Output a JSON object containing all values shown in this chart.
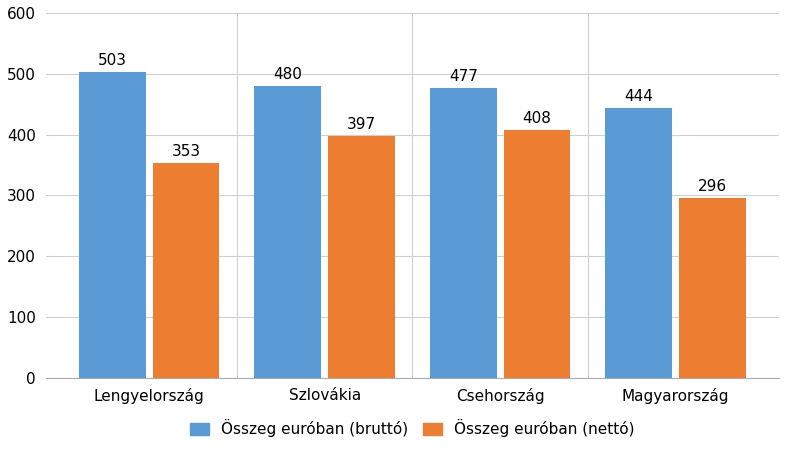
{
  "categories": [
    "Lengyelország",
    "Szlovákia",
    "Csehország",
    "Magyarország"
  ],
  "brutto": [
    503,
    480,
    477,
    444
  ],
  "netto": [
    353,
    397,
    408,
    296
  ],
  "color_brutto": "#5B9BD5",
  "color_netto": "#ED7D31",
  "ylim": [
    0,
    600
  ],
  "yticks": [
    0,
    100,
    200,
    300,
    400,
    500,
    600
  ],
  "legend_brutto": "Összeg euróban (bruttó)",
  "legend_netto": "Összeg euróban (nettó)",
  "bar_width": 0.38,
  "label_fontsize": 11,
  "tick_fontsize": 11,
  "legend_fontsize": 11,
  "background_color": "#ffffff",
  "grid_color": "#d0d0d0"
}
